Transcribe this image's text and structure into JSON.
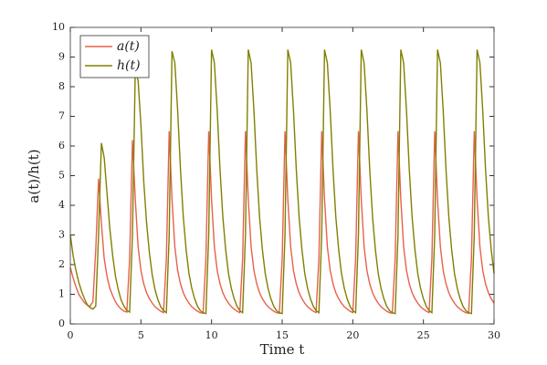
{
  "chart_data": {
    "type": "line",
    "xlabel": "Time t",
    "ylabel": "a(t)/h(t)",
    "x": [
      0,
      0.2,
      0.4,
      0.6,
      0.8,
      1,
      1.2,
      1.4,
      1.6,
      1.8,
      2,
      2.2,
      2.4,
      2.6,
      2.8,
      3,
      3.2,
      3.4,
      3.6,
      3.8,
      4,
      4.2,
      4.4,
      4.6,
      4.8,
      5,
      5.2,
      5.4,
      5.6,
      5.8,
      6,
      6.2,
      6.4,
      6.6,
      6.8,
      7,
      7.2,
      7.4,
      7.6,
      7.8,
      8,
      8.2,
      8.4,
      8.6,
      8.8,
      9,
      9.2,
      9.4,
      9.6,
      9.8,
      10,
      10.2,
      10.4,
      10.6,
      10.8,
      11,
      11.2,
      11.4,
      11.6,
      11.8,
      12,
      12.2,
      12.4,
      12.6,
      12.8,
      13,
      13.2,
      13.4,
      13.6,
      13.8,
      14,
      14.2,
      14.4,
      14.6,
      14.8,
      15,
      15.2,
      15.4,
      15.6,
      15.8,
      16,
      16.2,
      16.4,
      16.6,
      16.8,
      17,
      17.2,
      17.4,
      17.6,
      17.8,
      18,
      18.2,
      18.4,
      18.6,
      18.8,
      19,
      19.2,
      19.4,
      19.6,
      19.8,
      20,
      20.2,
      20.4,
      20.6,
      20.8,
      21,
      21.2,
      21.4,
      21.6,
      21.8,
      22,
      22.2,
      22.4,
      22.6,
      22.8,
      23,
      23.2,
      23.4,
      23.6,
      23.8,
      24,
      24.2,
      24.4,
      24.6,
      24.8,
      25,
      25.2,
      25.4,
      25.6,
      25.8,
      26,
      26.2,
      26.4,
      26.6,
      26.8,
      27,
      27.2,
      27.4,
      27.6,
      27.8,
      28,
      28.2,
      28.4,
      28.6,
      28.8,
      29,
      29.2,
      29.4,
      29.6,
      29.8,
      30
    ],
    "series": [
      {
        "name": "a(t)",
        "color": "#e8604c",
        "values": [
          1.9,
          1.55,
          1.25,
          1.0,
          0.85,
          0.72,
          0.63,
          0.6,
          0.75,
          2.5,
          4.9,
          3.4,
          2.2,
          1.6,
          1.2,
          0.95,
          0.75,
          0.6,
          0.5,
          0.43,
          0.4,
          2.2,
          6.2,
          4.2,
          2.6,
          1.8,
          1.35,
          1.05,
          0.85,
          0.7,
          0.58,
          0.5,
          0.43,
          0.38,
          2.2,
          6.5,
          4.2,
          2.6,
          1.8,
          1.35,
          1.05,
          0.85,
          0.7,
          0.58,
          0.5,
          0.43,
          0.38,
          0.36,
          2.2,
          6.5,
          4.2,
          2.6,
          1.8,
          1.35,
          1.05,
          0.85,
          0.7,
          0.58,
          0.5,
          0.43,
          0.38,
          2.2,
          6.5,
          4.2,
          2.6,
          1.8,
          1.35,
          1.05,
          0.85,
          0.7,
          0.58,
          0.5,
          0.43,
          0.38,
          0.36,
          2.2,
          6.5,
          4.2,
          2.6,
          1.8,
          1.35,
          1.05,
          0.85,
          0.7,
          0.58,
          0.5,
          0.43,
          0.38,
          2.2,
          6.5,
          4.2,
          2.6,
          1.8,
          1.35,
          1.05,
          0.85,
          0.7,
          0.58,
          0.5,
          0.43,
          0.38,
          2.2,
          6.5,
          4.2,
          2.6,
          1.8,
          1.35,
          1.05,
          0.85,
          0.7,
          0.58,
          0.5,
          0.43,
          0.38,
          0.36,
          2.2,
          6.5,
          4.2,
          2.6,
          1.8,
          1.35,
          1.05,
          0.85,
          0.7,
          0.58,
          0.5,
          0.43,
          0.38,
          2.2,
          6.5,
          4.2,
          2.6,
          1.8,
          1.35,
          1.05,
          0.85,
          0.7,
          0.58,
          0.5,
          0.43,
          0.38,
          0.36,
          2.2,
          6.5,
          4.2,
          2.6,
          1.8,
          1.35,
          1.05,
          0.85,
          0.7
        ]
      },
      {
        "name": "h(t)",
        "color": "#808000",
        "values": [
          3.0,
          2.3,
          1.8,
          1.4,
          1.1,
          0.85,
          0.65,
          0.55,
          0.5,
          0.6,
          3.0,
          6.1,
          5.6,
          4.4,
          3.2,
          2.3,
          1.6,
          1.15,
          0.8,
          0.6,
          0.45,
          0.4,
          3.0,
          8.6,
          8.2,
          6.7,
          4.8,
          3.4,
          2.4,
          1.65,
          1.15,
          0.82,
          0.58,
          0.45,
          0.38,
          3.0,
          9.2,
          8.8,
          7.2,
          5.2,
          3.6,
          2.5,
          1.7,
          1.2,
          0.85,
          0.6,
          0.45,
          0.38,
          0.35,
          3.0,
          9.25,
          8.8,
          7.2,
          5.2,
          3.6,
          2.5,
          1.7,
          1.2,
          0.85,
          0.6,
          0.45,
          0.38,
          3.0,
          9.25,
          8.8,
          7.2,
          5.2,
          3.6,
          2.5,
          1.7,
          1.2,
          0.85,
          0.6,
          0.45,
          0.38,
          0.35,
          3.0,
          9.25,
          8.8,
          7.2,
          5.2,
          3.6,
          2.5,
          1.7,
          1.2,
          0.85,
          0.6,
          0.45,
          0.38,
          3.0,
          9.25,
          8.8,
          7.2,
          5.2,
          3.6,
          2.5,
          1.7,
          1.2,
          0.85,
          0.6,
          0.45,
          0.38,
          3.0,
          9.25,
          8.8,
          7.2,
          5.2,
          3.6,
          2.5,
          1.7,
          1.2,
          0.85,
          0.6,
          0.45,
          0.38,
          0.35,
          3.0,
          9.25,
          8.8,
          7.2,
          5.2,
          3.6,
          2.5,
          1.7,
          1.2,
          0.85,
          0.6,
          0.45,
          0.38,
          3.0,
          9.25,
          8.8,
          7.2,
          5.2,
          3.6,
          2.5,
          1.7,
          1.2,
          0.85,
          0.6,
          0.45,
          0.38,
          0.35,
          3.0,
          9.25,
          8.8,
          7.2,
          5.2,
          3.6,
          2.5,
          1.7
        ]
      }
    ],
    "xlim": [
      0,
      30
    ],
    "xticks": [
      0,
      5,
      10,
      15,
      20,
      25,
      30
    ],
    "ylim": [
      0,
      10
    ],
    "yticks": [
      0,
      1,
      2,
      3,
      4,
      5,
      6,
      7,
      8,
      9,
      10
    ],
    "grid": false,
    "legend": "upper left"
  }
}
